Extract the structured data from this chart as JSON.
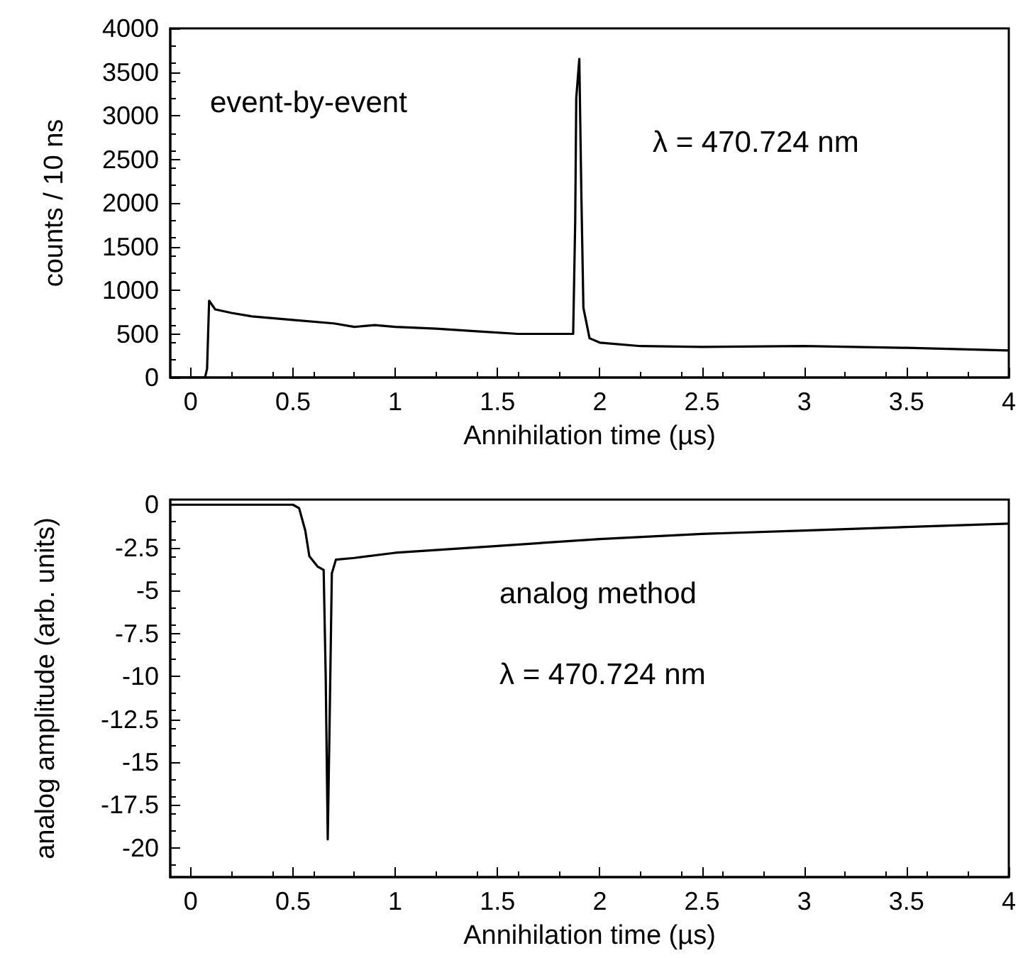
{
  "chart_data": [
    {
      "type": "line",
      "xlabel": "Annihilation time (µs)",
      "ylabel": "counts / 10 ns",
      "xlim": [
        -0.1,
        4
      ],
      "xticks": [
        0,
        0.5,
        1,
        1.5,
        2,
        2.5,
        3,
        3.5,
        4
      ],
      "ylim": [
        0,
        4000
      ],
      "yticks": [
        0,
        500,
        1000,
        1500,
        2000,
        2500,
        3000,
        3500,
        4000
      ],
      "grid": false,
      "marker": "none",
      "line_style": "solid",
      "annotations": [
        "event-by-event",
        "λ = 470.724 nm"
      ],
      "series": [
        {
          "color": "#000000",
          "x": [
            -0.1,
            0.07,
            0.08,
            0.09,
            0.12,
            0.2,
            0.3,
            0.5,
            0.7,
            0.8,
            0.9,
            1.0,
            1.2,
            1.4,
            1.6,
            1.8,
            1.87,
            1.88,
            1.885,
            1.9,
            1.91,
            1.92,
            1.95,
            2.0,
            2.2,
            2.5,
            3.0,
            3.5,
            4.0
          ],
          "values": [
            0,
            0,
            100,
            880,
            780,
            740,
            700,
            660,
            620,
            580,
            600,
            580,
            560,
            530,
            500,
            500,
            500,
            1800,
            3200,
            3650,
            2100,
            800,
            450,
            400,
            360,
            350,
            360,
            340,
            310
          ]
        }
      ]
    },
    {
      "type": "line",
      "xlabel": "Annihilation time (µs)",
      "ylabel": "analog amplitude (arb. units)",
      "xlim": [
        -0.1,
        4
      ],
      "xticks": [
        0,
        0.5,
        1,
        1.5,
        2,
        2.5,
        3,
        3.5,
        4
      ],
      "ylim": [
        -21.7,
        0.3
      ],
      "yticks": [
        0,
        -2.5,
        -5,
        -7.5,
        -10,
        -12.5,
        -15,
        -17.5,
        -20
      ],
      "grid": false,
      "marker": "none",
      "line_style": "solid",
      "annotations": [
        "analog method",
        "λ = 470.724 nm"
      ],
      "series": [
        {
          "color": "#000000",
          "x": [
            -0.1,
            0.5,
            0.53,
            0.56,
            0.58,
            0.62,
            0.65,
            0.66,
            0.67,
            0.68,
            0.69,
            0.71,
            0.8,
            1.0,
            1.5,
            2.0,
            2.5,
            3.0,
            3.5,
            4.0
          ],
          "values": [
            0,
            0,
            -0.2,
            -1.5,
            -3.0,
            -3.6,
            -3.8,
            -10,
            -19.5,
            -12,
            -4,
            -3.2,
            -3.1,
            -2.8,
            -2.4,
            -2.0,
            -1.7,
            -1.5,
            -1.3,
            -1.1
          ]
        }
      ]
    }
  ]
}
